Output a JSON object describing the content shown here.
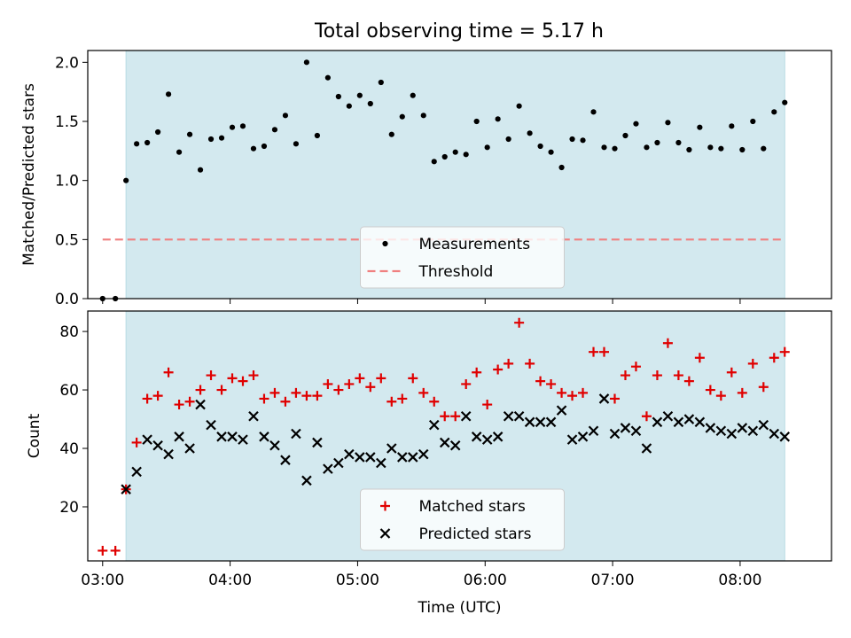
{
  "figure": {
    "title": "Total observing time = 5.17 h"
  },
  "chart_data": [
    {
      "type": "scatter",
      "panel": "top",
      "ylabel": "Matched/Predicted stars",
      "xlabel": "",
      "xlim": [
        "02:53",
        "08:43"
      ],
      "ylim": [
        0,
        2.1
      ],
      "yticks": [
        0.0,
        0.5,
        1.0,
        1.5,
        2.0
      ],
      "ytick_labels": [
        "0.0",
        "0.5",
        "1.0",
        "1.5",
        "2.0"
      ],
      "shaded_interval": [
        "03:11",
        "08:21"
      ],
      "shade_color": "#d3e9ef",
      "legend_position": "lower center",
      "series": [
        {
          "name": "Measurements",
          "marker": "dot",
          "color": "#000000",
          "x": [
            "03:00",
            "03:06",
            "03:11",
            "03:16",
            "03:21",
            "03:26",
            "03:31",
            "03:36",
            "03:41",
            "03:46",
            "03:51",
            "03:56",
            "04:01",
            "04:06",
            "04:11",
            "04:16",
            "04:21",
            "04:26",
            "04:31",
            "04:36",
            "04:41",
            "04:46",
            "04:51",
            "04:56",
            "05:01",
            "05:06",
            "05:11",
            "05:16",
            "05:21",
            "05:26",
            "05:31",
            "05:36",
            "05:41",
            "05:46",
            "05:51",
            "05:56",
            "06:01",
            "06:06",
            "06:11",
            "06:16",
            "06:21",
            "06:26",
            "06:31",
            "06:36",
            "06:41",
            "06:46",
            "06:51",
            "06:56",
            "07:01",
            "07:06",
            "07:11",
            "07:16",
            "07:21",
            "07:26",
            "07:31",
            "07:36",
            "07:41",
            "07:46",
            "07:51",
            "07:56",
            "08:01",
            "08:06",
            "08:11",
            "08:16",
            "08:21"
          ],
          "y": [
            0.0,
            0.0,
            1.0,
            1.31,
            1.32,
            1.41,
            1.73,
            1.24,
            1.39,
            1.09,
            1.35,
            1.36,
            1.45,
            1.46,
            1.27,
            1.29,
            1.43,
            1.55,
            1.31,
            2.0,
            1.38,
            1.87,
            1.71,
            1.63,
            1.72,
            1.65,
            1.83,
            1.39,
            1.54,
            1.72,
            1.55,
            1.16,
            1.2,
            1.24,
            1.22,
            1.5,
            1.28,
            1.52,
            1.35,
            1.63,
            1.4,
            1.29,
            1.24,
            1.11,
            1.35,
            1.34,
            1.58,
            1.28,
            1.27,
            1.38,
            1.48,
            1.28,
            1.32,
            1.49,
            1.32,
            1.26,
            1.45,
            1.28,
            1.27,
            1.46,
            1.26,
            1.5,
            1.27,
            1.58,
            1.66
          ]
        },
        {
          "name": "Threshold",
          "marker": "dashed-line",
          "color": "#f08080",
          "x": [
            "03:00",
            "08:21"
          ],
          "y": [
            0.5,
            0.5
          ]
        }
      ]
    },
    {
      "type": "scatter",
      "panel": "bottom",
      "ylabel": "Count",
      "xlabel": "Time (UTC)",
      "xlim": [
        "02:53",
        "08:43"
      ],
      "ylim": [
        1.5,
        87
      ],
      "yticks": [
        20,
        40,
        60,
        80
      ],
      "ytick_labels": [
        "20",
        "40",
        "60",
        "80"
      ],
      "xticks": [
        "03:00",
        "04:00",
        "05:00",
        "06:00",
        "07:00",
        "08:00"
      ],
      "xtick_labels": [
        "03:00",
        "04:00",
        "05:00",
        "06:00",
        "07:00",
        "08:00"
      ],
      "shaded_interval": [
        "03:11",
        "08:21"
      ],
      "shade_color": "#d3e9ef",
      "legend_position": "lower center",
      "series": [
        {
          "name": "Matched stars",
          "marker": "plus",
          "color": "#e00000",
          "x": [
            "03:00",
            "03:06",
            "03:11",
            "03:16",
            "03:21",
            "03:26",
            "03:31",
            "03:36",
            "03:41",
            "03:46",
            "03:51",
            "03:56",
            "04:01",
            "04:06",
            "04:11",
            "04:16",
            "04:21",
            "04:26",
            "04:31",
            "04:36",
            "04:41",
            "04:46",
            "04:51",
            "04:56",
            "05:01",
            "05:06",
            "05:11",
            "05:16",
            "05:21",
            "05:26",
            "05:31",
            "05:36",
            "05:41",
            "05:46",
            "05:51",
            "05:56",
            "06:01",
            "06:06",
            "06:11",
            "06:16",
            "06:21",
            "06:26",
            "06:31",
            "06:36",
            "06:41",
            "06:46",
            "06:51",
            "06:56",
            "07:01",
            "07:06",
            "07:11",
            "07:16",
            "07:21",
            "07:26",
            "07:31",
            "07:36",
            "07:41",
            "07:46",
            "07:51",
            "07:56",
            "08:01",
            "08:06",
            "08:11",
            "08:16",
            "08:21"
          ],
          "y": [
            5,
            5,
            26,
            42,
            57,
            58,
            66,
            55,
            56,
            60,
            65,
            60,
            64,
            63,
            65,
            57,
            59,
            56,
            59,
            58,
            58,
            62,
            60,
            62,
            64,
            61,
            64,
            56,
            57,
            64,
            59,
            56,
            51,
            51,
            62,
            66,
            55,
            67,
            69,
            83,
            69,
            63,
            62,
            59,
            58,
            59,
            73,
            73,
            57,
            65,
            68,
            51,
            65,
            76,
            65,
            63,
            71,
            60,
            58,
            66,
            59,
            69,
            61,
            71,
            73
          ]
        },
        {
          "name": "Predicted stars",
          "marker": "x",
          "color": "#000000",
          "x": [
            "03:00",
            "03:06",
            "03:11",
            "03:16",
            "03:21",
            "03:26",
            "03:31",
            "03:36",
            "03:41",
            "03:46",
            "03:51",
            "03:56",
            "04:01",
            "04:06",
            "04:11",
            "04:16",
            "04:21",
            "04:26",
            "04:31",
            "04:36",
            "04:41",
            "04:46",
            "04:51",
            "04:56",
            "05:01",
            "05:06",
            "05:11",
            "05:16",
            "05:21",
            "05:26",
            "05:31",
            "05:36",
            "05:41",
            "05:46",
            "05:51",
            "05:56",
            "06:01",
            "06:06",
            "06:11",
            "06:16",
            "06:21",
            "06:26",
            "06:31",
            "06:36",
            "06:41",
            "06:46",
            "06:51",
            "06:56",
            "07:01",
            "07:06",
            "07:11",
            "07:16",
            "07:21",
            "07:26",
            "07:31",
            "07:36",
            "07:41",
            "07:46",
            "07:51",
            "07:56",
            "08:01",
            "08:06",
            "08:11",
            "08:16",
            "08:21"
          ],
          "y": [
            null,
            null,
            26,
            32,
            43,
            41,
            38,
            44,
            40,
            55,
            48,
            44,
            44,
            43,
            51,
            44,
            41,
            36,
            45,
            29,
            42,
            33,
            35,
            38,
            37,
            37,
            35,
            40,
            37,
            37,
            38,
            48,
            42,
            41,
            51,
            44,
            43,
            44,
            51,
            51,
            49,
            49,
            49,
            53,
            43,
            44,
            46,
            57,
            45,
            47,
            46,
            40,
            49,
            51,
            49,
            50,
            49,
            47,
            46,
            45,
            47,
            46,
            48,
            45,
            44
          ]
        }
      ]
    }
  ]
}
